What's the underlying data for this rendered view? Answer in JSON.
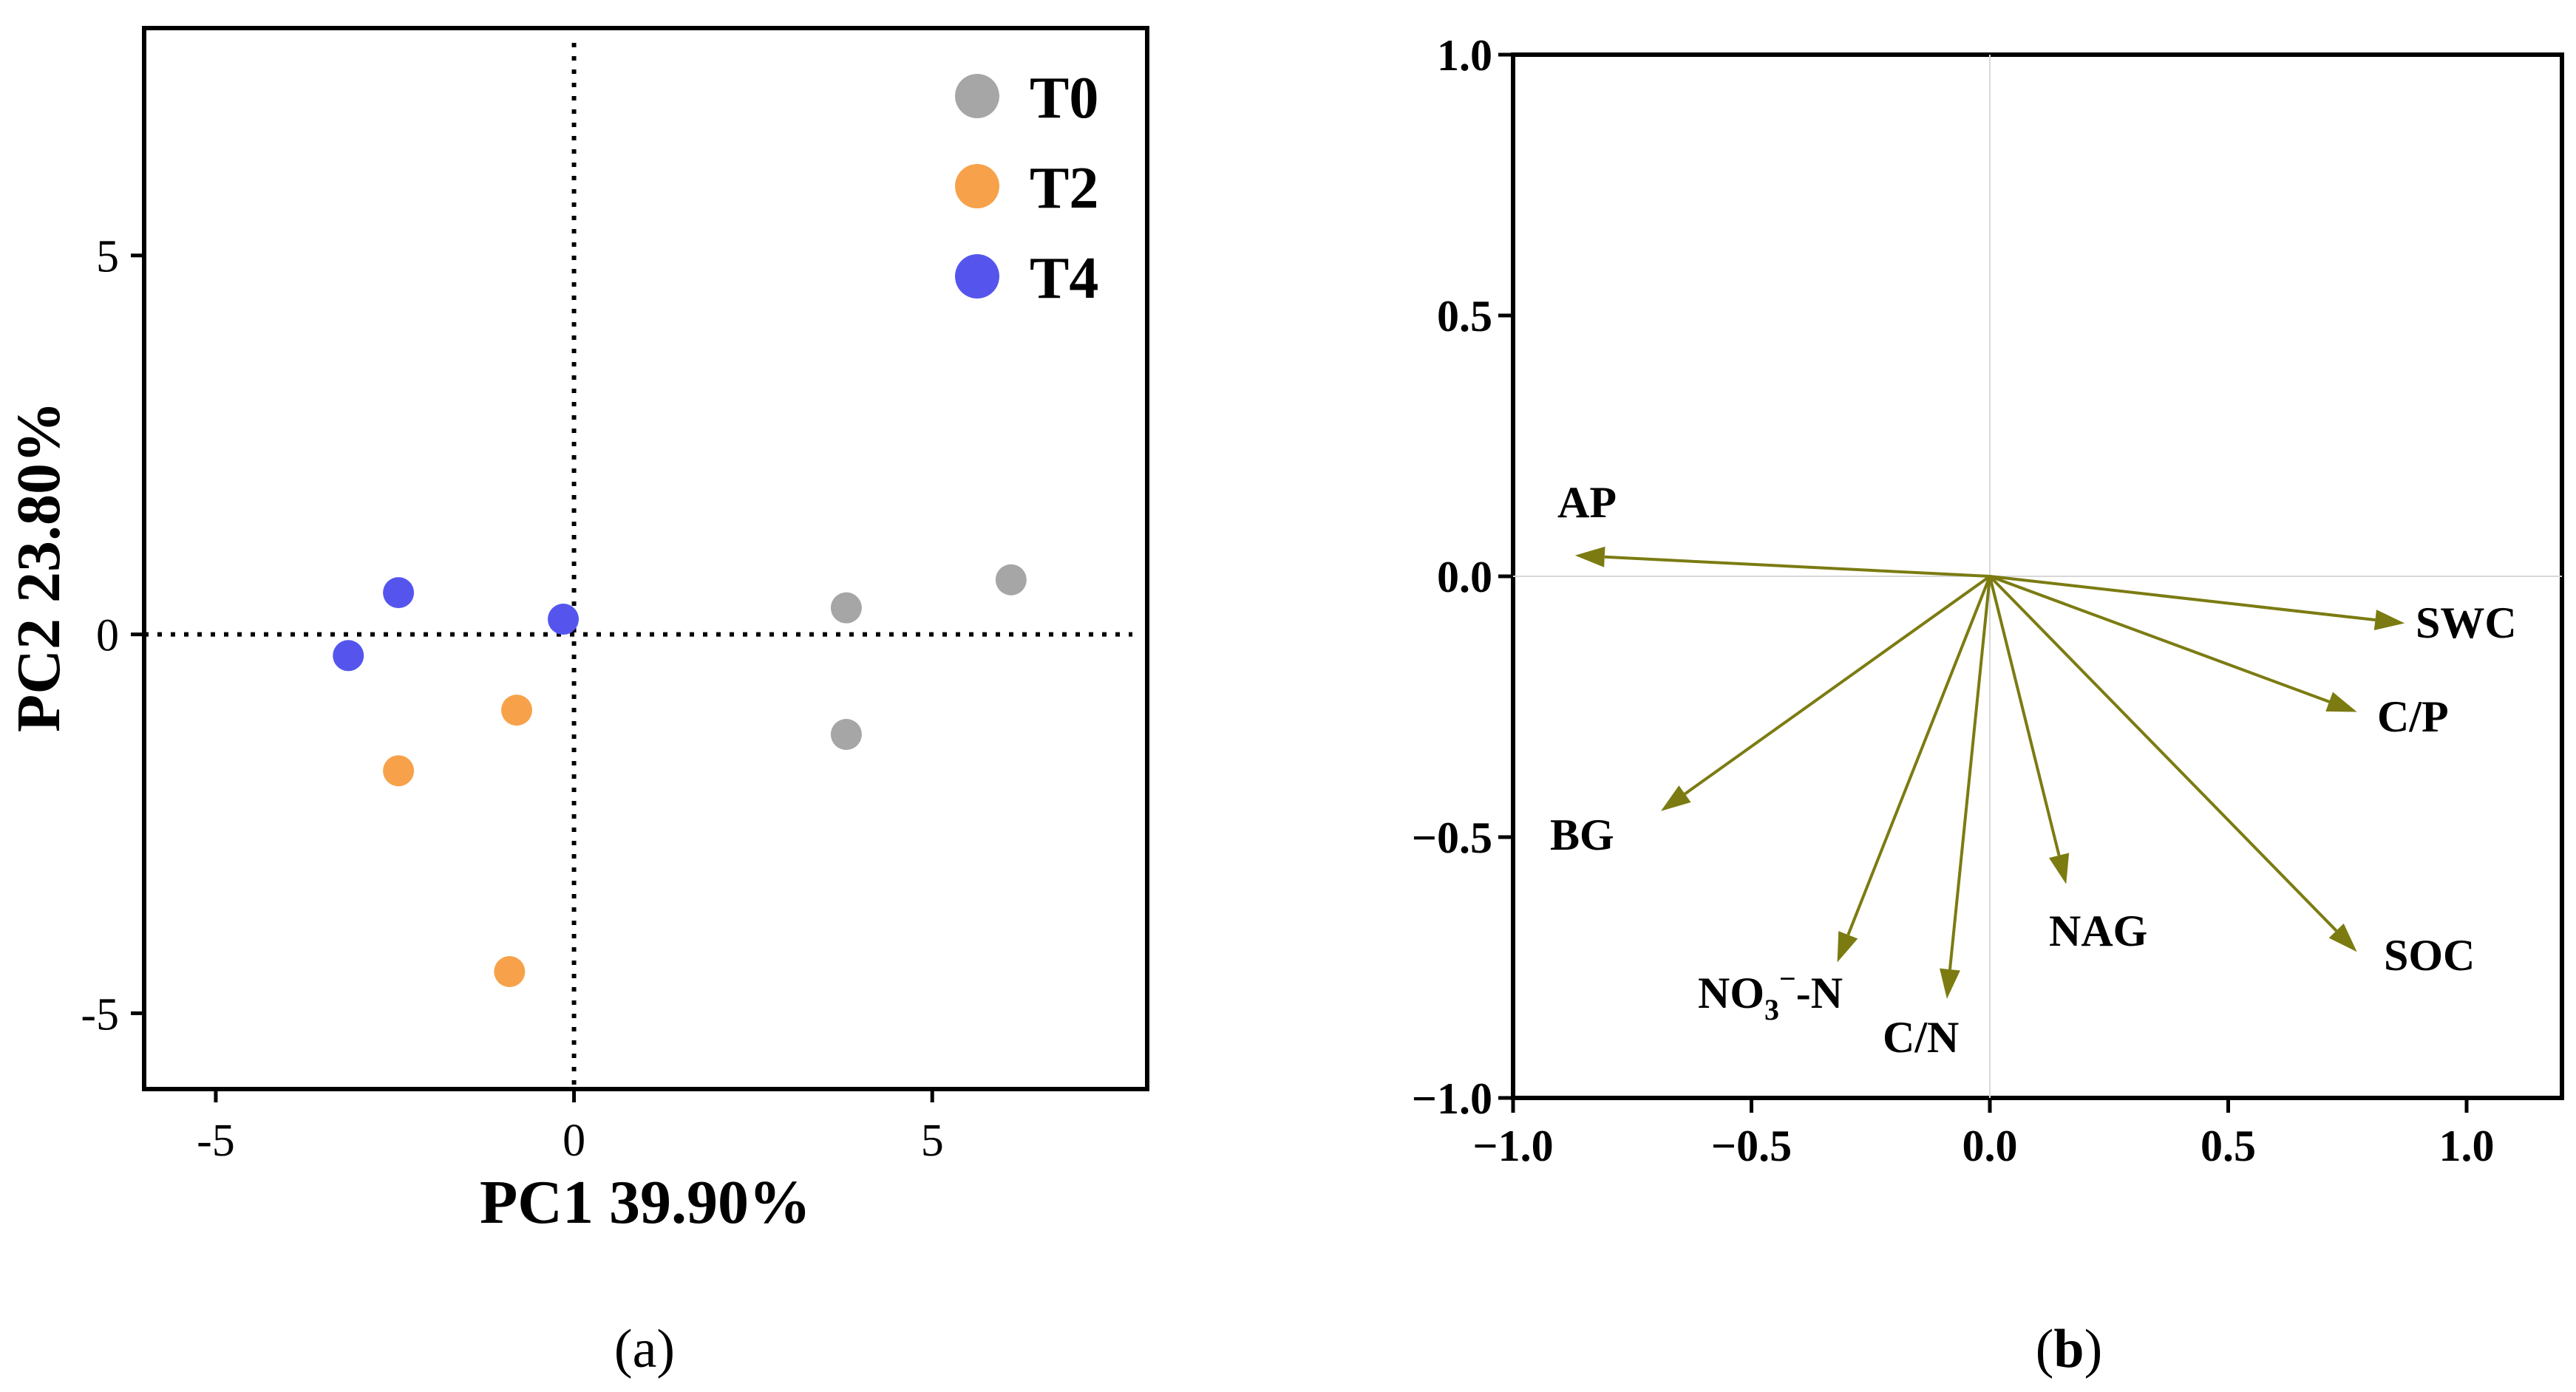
{
  "chart_data": [
    {
      "type": "scatter",
      "panel_label": "(a)",
      "panel_letter": "a",
      "xlabel": "PC1 39.90%",
      "ylabel": "PC2 23.80%",
      "xlim": [
        -6,
        8
      ],
      "ylim": [
        -6,
        8
      ],
      "xticks": [
        -5,
        0,
        5
      ],
      "yticks": [
        -5,
        0,
        5
      ],
      "xtick_labels": [
        "-5",
        "0",
        "5"
      ],
      "ytick_labels": [
        "-5",
        "0",
        "5"
      ],
      "reference_lines": {
        "x": 0,
        "y": 0,
        "style": "dotted"
      },
      "legend_position": "top-right",
      "series": [
        {
          "name": "T0",
          "color": "#a6a6a6",
          "points": [
            [
              3.8,
              0.35
            ],
            [
              6.1,
              0.72
            ],
            [
              3.8,
              -1.32
            ]
          ]
        },
        {
          "name": "T2",
          "color": "#f7a24a",
          "points": [
            [
              -0.8,
              -1.0
            ],
            [
              -2.45,
              -1.8
            ],
            [
              -0.9,
              -4.45
            ]
          ]
        },
        {
          "name": "T4",
          "color": "#5555ee",
          "points": [
            [
              -2.45,
              0.55
            ],
            [
              -0.15,
              0.2
            ],
            [
              -3.15,
              -0.28
            ]
          ]
        }
      ]
    },
    {
      "type": "biplot",
      "panel_label": "(b)",
      "panel_letter": "b",
      "xlim": [
        -1.0,
        1.2
      ],
      "ylim": [
        -1.0,
        1.0
      ],
      "xticks": [
        -1.0,
        -0.5,
        0.0,
        0.5,
        1.0
      ],
      "yticks": [
        -1.0,
        -0.5,
        0.0,
        0.5,
        1.0
      ],
      "xtick_labels": [
        "−1.0",
        "−0.5",
        "0.0",
        "0.5",
        "1.0"
      ],
      "ytick_labels": [
        "−1.0",
        "−0.5",
        "0.0",
        "0.5",
        "1.0"
      ],
      "arrow_color": "#7b7b12",
      "vectors": [
        {
          "label": "AP",
          "x": -0.87,
          "y": 0.04
        },
        {
          "label": "SWC",
          "x": 0.87,
          "y": -0.09
        },
        {
          "label": "C/P",
          "x": 0.77,
          "y": -0.26
        },
        {
          "label": "BG",
          "x": -0.69,
          "y": -0.45
        },
        {
          "label": "NO3−-N",
          "label_main": "NO",
          "label_sub": "3",
          "label_sup": "−",
          "label_tail": "-N",
          "x": -0.32,
          "y": -0.74
        },
        {
          "label": "C/N",
          "x": -0.09,
          "y": -0.81
        },
        {
          "label": "NAG",
          "x": 0.16,
          "y": -0.59
        },
        {
          "label": "SOC",
          "x": 0.77,
          "y": -0.72
        }
      ]
    }
  ]
}
